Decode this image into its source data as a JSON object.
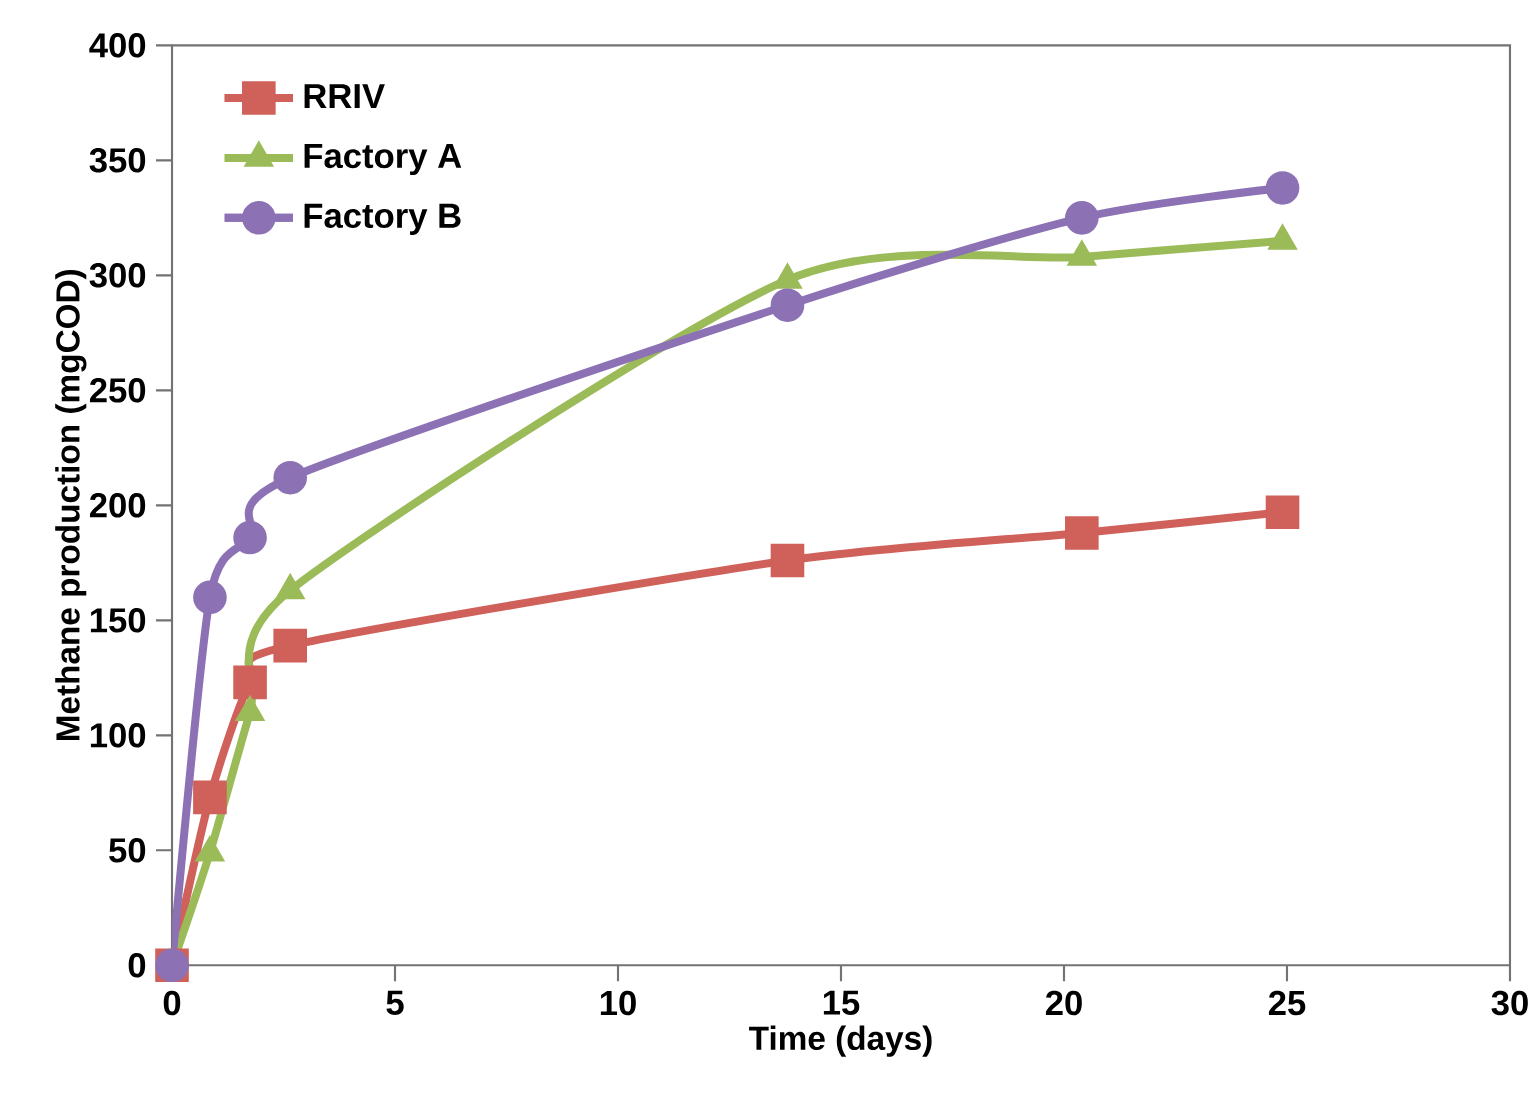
{
  "chart_data": {
    "type": "line",
    "xlabel": "Time (days)",
    "ylabel": "Methane production (mgCOD)",
    "xlim": [
      0,
      30
    ],
    "xticks": [
      0,
      5,
      10,
      15,
      20,
      25,
      30
    ],
    "ylim": [
      0,
      400
    ],
    "yticks": [
      0,
      50,
      100,
      150,
      200,
      250,
      300,
      350,
      400
    ],
    "legend": "top left",
    "grid": false,
    "line_style": "solid",
    "series": [
      {
        "name": "RRIV",
        "color": "#d0605a",
        "marker": "square",
        "x": [
          0,
          0.85,
          1.75,
          2.65,
          13.8,
          20.4,
          24.9
        ],
        "values": [
          0,
          73,
          123,
          139,
          176,
          188,
          197
        ]
      },
      {
        "name": "Factory A",
        "color": "#9bbb59",
        "marker": "triangle",
        "x": [
          0,
          0.85,
          1.75,
          2.65,
          13.8,
          20.4,
          24.9
        ],
        "values": [
          0,
          49,
          110,
          163,
          298,
          308,
          315
        ]
      },
      {
        "name": "Factory B",
        "color": "#8c72b4",
        "marker": "circle",
        "x": [
          0,
          0.85,
          1.75,
          2.65,
          13.8,
          20.4,
          24.9
        ],
        "values": [
          0,
          160,
          186,
          212,
          287,
          325,
          338
        ]
      }
    ]
  }
}
